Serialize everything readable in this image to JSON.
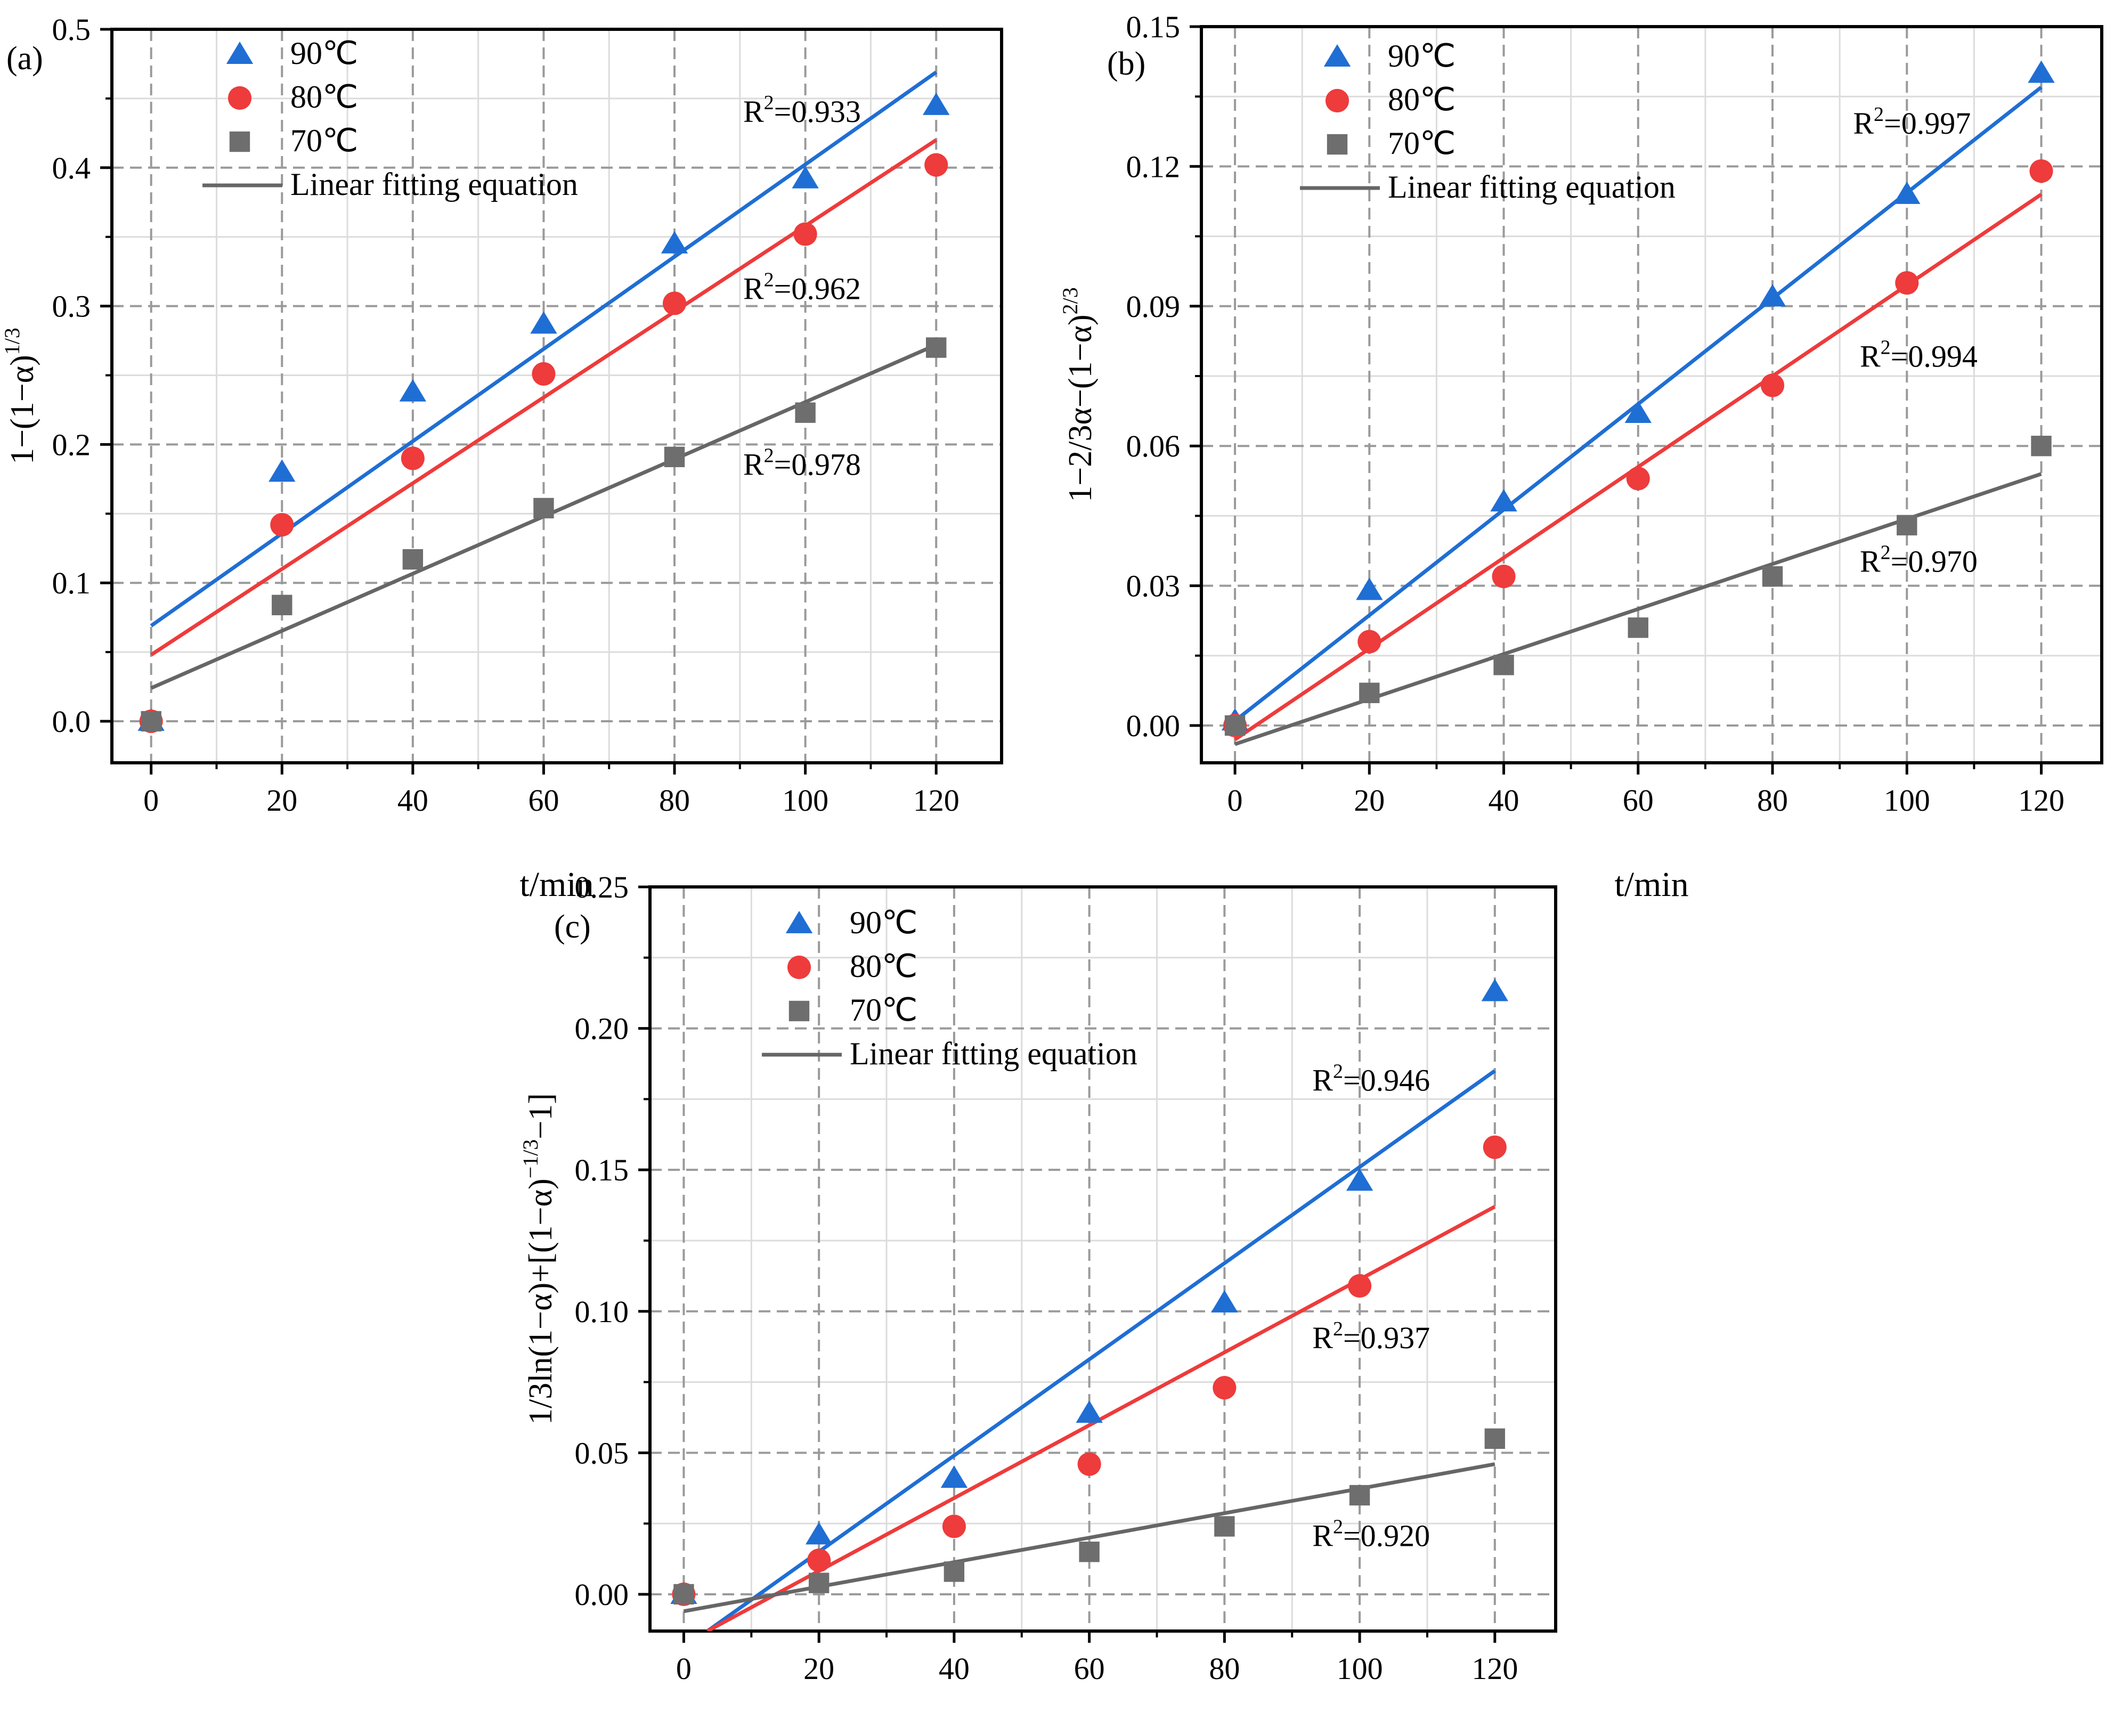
{
  "colors": {
    "c90": "#1f6ed4",
    "c80": "#ee3b3b",
    "c70": "#6e6e6e",
    "fit70": "#666666"
  },
  "chart_data": [
    {
      "id": "a",
      "type": "scatter",
      "panel_label": "(a)",
      "xlabel": "t/min",
      "ylabel": {
        "base": "1−(1−α)",
        "sup": "1/3"
      },
      "xlim": [
        -6,
        130
      ],
      "ylim": [
        -0.03,
        0.5
      ],
      "xticks": [
        0,
        20,
        40,
        60,
        80,
        100,
        120
      ],
      "yticks": [
        0.0,
        0.1,
        0.2,
        0.3,
        0.4,
        0.5
      ],
      "ytick_labels": [
        "0.0",
        "0.1",
        "0.2",
        "0.3",
        "0.4",
        "0.5"
      ],
      "grid": true,
      "legend_position": "top-left",
      "legend": [
        "90℃",
        "80℃",
        "70℃",
        "Linear fitting equation"
      ],
      "x": [
        0,
        20,
        40,
        60,
        80,
        100,
        120
      ],
      "series": [
        {
          "name": "90℃",
          "marker": "triangle",
          "color": "#1f6ed4",
          "values": [
            0.0,
            0.18,
            0.238,
            0.287,
            0.345,
            0.392,
            0.445
          ],
          "fit": [
            [
              0,
              0.069
            ],
            [
              120,
              0.469
            ]
          ],
          "r2": "0.933",
          "r2_at": [
            90.5,
            0.433
          ]
        },
        {
          "name": "80℃",
          "marker": "circle",
          "color": "#ee3b3b",
          "values": [
            0.0,
            0.142,
            0.19,
            0.251,
            0.302,
            0.352,
            0.402
          ],
          "fit": [
            [
              0,
              0.048
            ],
            [
              120,
              0.42
            ]
          ],
          "r2": "0.962",
          "r2_at": [
            90.5,
            0.305
          ]
        },
        {
          "name": "70℃",
          "marker": "square",
          "color": "#6e6e6e",
          "values": [
            0.0,
            0.084,
            0.117,
            0.154,
            0.191,
            0.223,
            0.27
          ],
          "fit": [
            [
              0,
              0.024
            ],
            [
              120,
              0.272
            ]
          ],
          "r2": "0.978",
          "r2_at": [
            90.5,
            0.178
          ]
        }
      ]
    },
    {
      "id": "b",
      "type": "scatter",
      "panel_label": "(b)",
      "xlabel": "t/min",
      "ylabel": {
        "base": "1−2/3α−(1−α)",
        "sup": "2/3"
      },
      "xlim": [
        -5,
        129
      ],
      "ylim": [
        -0.008,
        0.15
      ],
      "xticks": [
        0,
        20,
        40,
        60,
        80,
        100,
        120
      ],
      "yticks": [
        0.0,
        0.03,
        0.06,
        0.09,
        0.12,
        0.15
      ],
      "ytick_labels": [
        "0.00",
        "0.03",
        "0.06",
        "0.09",
        "0.12",
        "0.15"
      ],
      "grid": true,
      "legend_position": "top-left",
      "legend": [
        "90℃",
        "80℃",
        "70℃",
        "Linear fitting equation"
      ],
      "x": [
        0,
        20,
        40,
        60,
        80,
        100,
        120
      ],
      "series": [
        {
          "name": "90℃",
          "marker": "triangle",
          "color": "#1f6ed4",
          "values": [
            0.001,
            0.029,
            0.048,
            0.067,
            0.092,
            0.114,
            0.14
          ],
          "fit": [
            [
              0,
              0.001
            ],
            [
              120,
              0.137
            ]
          ],
          "r2": "0.997",
          "r2_at": [
            92,
            0.127
          ]
        },
        {
          "name": "80℃",
          "marker": "circle",
          "color": "#ee3b3b",
          "values": [
            0.0,
            0.018,
            0.032,
            0.053,
            0.073,
            0.095,
            0.119
          ],
          "fit": [
            [
              0,
              -0.003
            ],
            [
              120,
              0.114
            ]
          ],
          "r2": "0.994",
          "r2_at": [
            93,
            0.077
          ]
        },
        {
          "name": "70℃",
          "marker": "square",
          "color": "#6e6e6e",
          "values": [
            0.0,
            0.007,
            0.013,
            0.021,
            0.032,
            0.043,
            0.06
          ],
          "fit": [
            [
              0,
              -0.004
            ],
            [
              120,
              0.054
            ]
          ],
          "r2": "0.970",
          "r2_at": [
            93,
            0.033
          ]
        }
      ]
    },
    {
      "id": "c",
      "type": "scatter",
      "panel_label": "(c)",
      "xlabel": "t/min",
      "ylabel": {
        "base": "1/3ln(1−α)+[(1−α)",
        "sup": "−1/3",
        "tail": "−1]"
      },
      "xlim": [
        -5,
        129
      ],
      "ylim": [
        -0.013,
        0.25
      ],
      "xticks": [
        0,
        20,
        40,
        60,
        80,
        100,
        120
      ],
      "yticks": [
        0.0,
        0.05,
        0.1,
        0.15,
        0.2,
        0.25
      ],
      "ytick_labels": [
        "0.00",
        "0.05",
        "0.10",
        "0.15",
        "0.20",
        "0.25"
      ],
      "grid": true,
      "legend_position": "top-left",
      "legend": [
        "90℃",
        "80℃",
        "70℃",
        "Linear fitting equation"
      ],
      "x": [
        0,
        20,
        40,
        60,
        80,
        100,
        120
      ],
      "series": [
        {
          "name": "90℃",
          "marker": "triangle",
          "color": "#1f6ed4",
          "values": [
            0.0,
            0.021,
            0.041,
            0.064,
            0.103,
            0.146,
            0.213
          ],
          "fit": [
            [
              3.5,
              -0.013
            ],
            [
              120,
              0.185
            ]
          ],
          "r2": "0.946",
          "r2_at": [
            93,
            0.178
          ]
        },
        {
          "name": "80℃",
          "marker": "circle",
          "color": "#ee3b3b",
          "values": [
            0.0,
            0.012,
            0.024,
            0.046,
            0.073,
            0.109,
            0.158
          ],
          "fit": [
            [
              3.5,
              -0.013
            ],
            [
              120,
              0.137
            ]
          ],
          "r2": "0.937",
          "r2_at": [
            93,
            0.087
          ]
        },
        {
          "name": "70℃",
          "marker": "square",
          "color": "#6e6e6e",
          "values": [
            0.0,
            0.004,
            0.008,
            0.015,
            0.024,
            0.035,
            0.055
          ],
          "fit": [
            [
              0,
              -0.006
            ],
            [
              120,
              0.046
            ]
          ],
          "r2": "0.920",
          "r2_at": [
            93,
            0.017
          ]
        }
      ]
    }
  ]
}
